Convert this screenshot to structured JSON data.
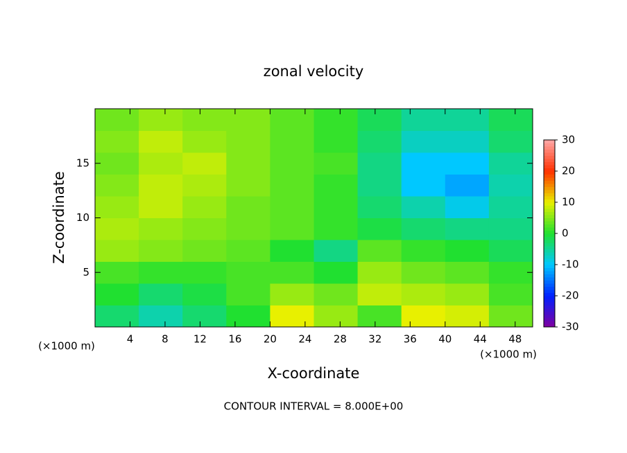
{
  "chart_data": {
    "type": "heatmap",
    "title": "zonal velocity",
    "x_label": "X-coordinate",
    "y_label": "Z-coordinate",
    "x_unit": "(×1000 m)",
    "y_unit": "(×1000 m)",
    "footnote": "CONTOUR INTERVAL = 8.000E+00",
    "x": [
      0,
      5,
      10,
      15,
      20,
      25,
      30,
      35,
      40,
      45,
      50
    ],
    "z": [
      0,
      2,
      4,
      6,
      8,
      10,
      12,
      14,
      16,
      18,
      20
    ],
    "values": [
      [
        -3,
        -6,
        -3,
        0,
        10,
        6,
        2,
        10,
        9,
        4
      ],
      [
        0,
        -3,
        -1,
        2,
        6,
        4,
        8,
        7,
        6,
        2
      ],
      [
        2,
        1,
        1,
        2,
        2,
        0,
        6,
        4,
        3,
        1
      ],
      [
        6,
        5,
        4,
        3,
        0,
        -4,
        3,
        1,
        0,
        -2
      ],
      [
        7,
        6,
        5,
        4,
        3,
        1,
        -1,
        -3,
        -4,
        -4
      ],
      [
        6,
        8,
        6,
        4,
        3,
        1,
        -3,
        -6,
        -9,
        -5
      ],
      [
        5,
        8,
        7,
        5,
        3,
        1,
        -4,
        -10,
        -12,
        -6
      ],
      [
        4,
        7,
        8,
        5,
        3,
        2,
        -4,
        -10,
        -10,
        -5
      ],
      [
        5,
        8,
        6,
        5,
        3,
        1,
        -3,
        -7,
        -7,
        -3
      ],
      [
        4,
        6,
        5,
        5,
        3,
        1,
        -2,
        -5,
        -5,
        -2
      ]
    ],
    "xlim": [
      0,
      50
    ],
    "ylim": [
      0,
      20
    ],
    "xticks": [
      4,
      8,
      12,
      16,
      20,
      24,
      28,
      32,
      36,
      40,
      44,
      48
    ],
    "yticks": [
      5,
      10,
      15
    ],
    "clim": [
      -30,
      30
    ],
    "cticks": [
      -30,
      -20,
      -10,
      0,
      10,
      20,
      30
    ],
    "colorscale": [
      "#8000a0",
      "#0020ff",
      "#00c8ff",
      "#20e030",
      "#e8f000",
      "#ff3000",
      "#ffa8a8"
    ]
  }
}
